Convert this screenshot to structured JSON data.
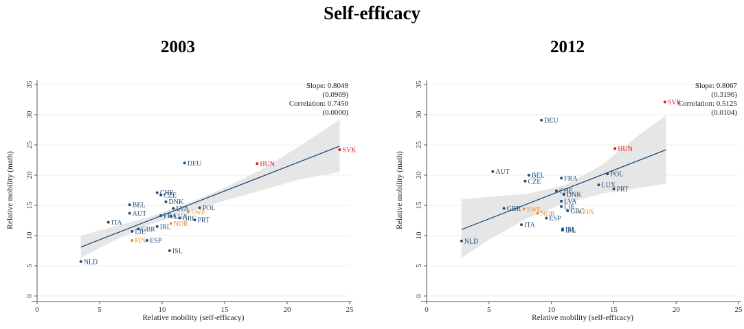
{
  "title": "Self-efficacy",
  "colors": {
    "default": "#1f4e79",
    "highlight_red": "#e31a1c",
    "highlight_orange": "#f28e1c",
    "band": "#e6e6e6",
    "line": "#1f4e79"
  },
  "chart_data": [
    {
      "type": "scatter",
      "title": "2003",
      "xlabel": "Relative mobility (self-efficacy)",
      "ylabel": "Relative mobility (math)",
      "xlim": [
        0,
        25
      ],
      "ylim": [
        0,
        35
      ],
      "xticks": [
        0,
        5,
        10,
        15,
        20,
        25
      ],
      "yticks": [
        0,
        5,
        10,
        15,
        20,
        25,
        30,
        35
      ],
      "stats": [
        "Slope: 0.8049",
        "(0.0969)",
        "Correlation: 0.7450",
        "(0.0000)"
      ],
      "fit": {
        "x": [
          3.5,
          24.2
        ],
        "y": [
          8.1,
          24.8
        ]
      },
      "band": {
        "x": [
          3.5,
          6,
          9,
          12,
          15,
          18,
          21,
          24.2
        ],
        "lower": [
          6.3,
          9.0,
          11.8,
          13.9,
          15.8,
          17.5,
          19.3,
          20.5
        ],
        "upper": [
          10.0,
          11.4,
          13.1,
          15.3,
          17.9,
          21.0,
          24.8,
          29.2
        ]
      },
      "points": [
        {
          "label": "NLD",
          "x": 3.5,
          "y": 5.7,
          "color": "default"
        },
        {
          "label": "ITA",
          "x": 5.7,
          "y": 12.2,
          "color": "default"
        },
        {
          "label": "BEL",
          "x": 7.4,
          "y": 15.1,
          "color": "default"
        },
        {
          "label": "AUT",
          "x": 7.4,
          "y": 13.7,
          "color": "default"
        },
        {
          "label": "LIE",
          "x": 7.6,
          "y": 10.7,
          "color": "default"
        },
        {
          "label": "FIN",
          "x": 7.6,
          "y": 9.2,
          "color": "highlight_orange"
        },
        {
          "label": "GBR",
          "x": 8.1,
          "y": 11.1,
          "color": "default"
        },
        {
          "label": "ESP",
          "x": 8.8,
          "y": 9.2,
          "color": "default"
        },
        {
          "label": "CHE",
          "x": 9.6,
          "y": 17.1,
          "color": "default"
        },
        {
          "label": "CZE",
          "x": 9.9,
          "y": 16.7,
          "color": "default"
        },
        {
          "label": "DNK",
          "x": 10.3,
          "y": 15.6,
          "color": "default"
        },
        {
          "label": "IRL",
          "x": 9.6,
          "y": 11.5,
          "color": "default"
        },
        {
          "label": "FRA",
          "x": 9.9,
          "y": 13.3,
          "color": "default"
        },
        {
          "label": "LVA",
          "x": 10.9,
          "y": 14.5,
          "color": "default"
        },
        {
          "label": "LUX",
          "x": 10.7,
          "y": 13.2,
          "color": "default"
        },
        {
          "label": "GRC",
          "x": 11.4,
          "y": 12.9,
          "color": "default"
        },
        {
          "label": "NOR",
          "x": 10.7,
          "y": 12.0,
          "color": "highlight_orange"
        },
        {
          "label": "SWE",
          "x": 12.1,
          "y": 13.9,
          "color": "highlight_orange"
        },
        {
          "label": "PRT",
          "x": 12.6,
          "y": 12.6,
          "color": "default"
        },
        {
          "label": "POL",
          "x": 13.0,
          "y": 14.6,
          "color": "default"
        },
        {
          "label": "ISL",
          "x": 10.6,
          "y": 7.5,
          "color": "default"
        },
        {
          "label": "DEU",
          "x": 11.8,
          "y": 22.0,
          "color": "default"
        },
        {
          "label": "HUN",
          "x": 17.6,
          "y": 21.9,
          "color": "highlight_red"
        },
        {
          "label": "SVK",
          "x": 24.2,
          "y": 24.2,
          "color": "highlight_red"
        }
      ]
    },
    {
      "type": "scatter",
      "title": "2012",
      "xlabel": "Relative mobility (self-efficacy)",
      "ylabel": "Relative mobility (math)",
      "xlim": [
        0,
        25
      ],
      "ylim": [
        0,
        35
      ],
      "xticks": [
        0,
        5,
        10,
        15,
        20,
        25
      ],
      "yticks": [
        0,
        5,
        10,
        15,
        20,
        25,
        30,
        35
      ],
      "stats": [
        "Slope: 0.8067",
        "(0.3196)",
        "Correlation: 0.5125",
        "(0.0104)"
      ],
      "fit": {
        "x": [
          2.8,
          19.2
        ],
        "y": [
          11.0,
          24.2
        ]
      },
      "band": {
        "x": [
          2.8,
          5,
          8,
          11,
          14,
          17,
          19.2
        ],
        "lower": [
          6.3,
          9.3,
          12.8,
          15.3,
          16.9,
          17.9,
          18.6
        ],
        "upper": [
          16.0,
          16.4,
          16.9,
          18.3,
          21.6,
          26.6,
          29.9
        ]
      },
      "points": [
        {
          "label": "NLD",
          "x": 2.8,
          "y": 9.1,
          "color": "default"
        },
        {
          "label": "AUT",
          "x": 5.3,
          "y": 20.6,
          "color": "default"
        },
        {
          "label": "GBR",
          "x": 6.2,
          "y": 14.5,
          "color": "default"
        },
        {
          "label": "SWE",
          "x": 7.8,
          "y": 14.4,
          "color": "highlight_orange"
        },
        {
          "label": "ITA",
          "x": 7.6,
          "y": 11.8,
          "color": "default"
        },
        {
          "label": "BEL",
          "x": 8.2,
          "y": 20.0,
          "color": "default"
        },
        {
          "label": "CZE",
          "x": 7.9,
          "y": 19.0,
          "color": "default"
        },
        {
          "label": "NOR",
          "x": 8.9,
          "y": 13.7,
          "color": "highlight_orange"
        },
        {
          "label": "ESP",
          "x": 9.6,
          "y": 12.9,
          "color": "default"
        },
        {
          "label": "DEU",
          "x": 9.2,
          "y": 29.1,
          "color": "default"
        },
        {
          "label": "CHE",
          "x": 10.4,
          "y": 17.4,
          "color": "default"
        },
        {
          "label": "FRA",
          "x": 10.8,
          "y": 19.5,
          "color": "default"
        },
        {
          "label": "DNK",
          "x": 11.0,
          "y": 16.8,
          "color": "default"
        },
        {
          "label": "LVA",
          "x": 10.8,
          "y": 15.7,
          "color": "default"
        },
        {
          "label": "LIE",
          "x": 10.8,
          "y": 14.8,
          "color": "default"
        },
        {
          "label": "GRC",
          "x": 11.3,
          "y": 14.1,
          "color": "default"
        },
        {
          "label": "FIN",
          "x": 12.3,
          "y": 13.9,
          "color": "highlight_orange"
        },
        {
          "label": "ISL",
          "x": 10.9,
          "y": 11.1,
          "color": "default"
        },
        {
          "label": "IRL",
          "x": 10.9,
          "y": 10.9,
          "color": "default"
        },
        {
          "label": "LUX",
          "x": 13.8,
          "y": 18.4,
          "color": "default"
        },
        {
          "label": "POL",
          "x": 14.5,
          "y": 20.2,
          "color": "default"
        },
        {
          "label": "PRT",
          "x": 15.0,
          "y": 17.7,
          "color": "default"
        },
        {
          "label": "HUN",
          "x": 15.1,
          "y": 24.4,
          "color": "highlight_red"
        },
        {
          "label": "SVK",
          "x": 19.1,
          "y": 32.1,
          "color": "highlight_red"
        }
      ]
    }
  ]
}
